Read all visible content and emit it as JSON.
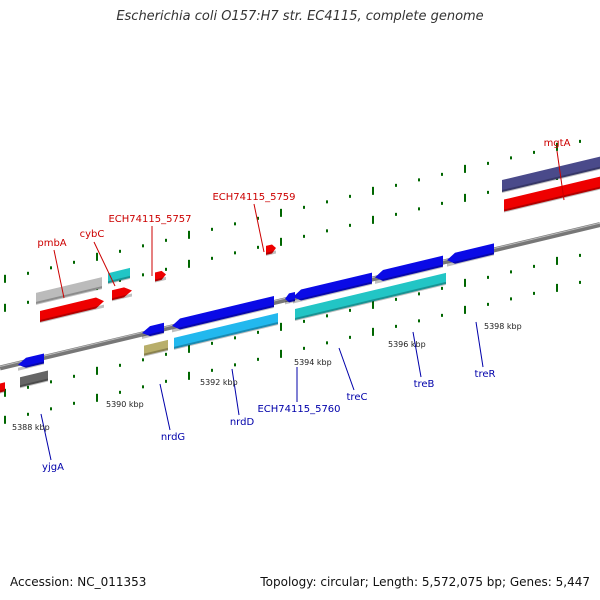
{
  "title": "Escherichia coli O157:H7 str. EC4115, complete genome",
  "footer": {
    "accession": "Accession: NC_011353",
    "summary": "Topology: circular; Length: 5,572,075 bp; Genes: 5,447"
  },
  "colors": {
    "plus_strand_label": "#cc0000",
    "minus_strand_label": "#0000aa",
    "backbone": "#777777",
    "tick": "#006600",
    "gene_blue": "#0a0ae6",
    "gene_red": "#ee0000",
    "cds_cyan": "#22c5c5",
    "cds_light_blue": "#22b8ee",
    "cds_purple": "#4a4a8a",
    "cds_grey": "#bbbbbb",
    "cds_dark_grey": "#666666",
    "cds_olive": "#b8ae6a"
  },
  "scale_labels": [
    "5388 kbp",
    "5390 kbp",
    "5392 kbp",
    "5394 kbp",
    "5396 kbp",
    "5398 kbp"
  ],
  "gene_labels_plus": [
    "pmbA",
    "cybC",
    "ECH74115_5757",
    "ECH74115_5759",
    "mgtA"
  ],
  "gene_labels_minus": [
    "yjgA",
    "nrdG",
    "nrdD",
    "ECH74115_5760",
    "treC",
    "treB",
    "treR"
  ]
}
